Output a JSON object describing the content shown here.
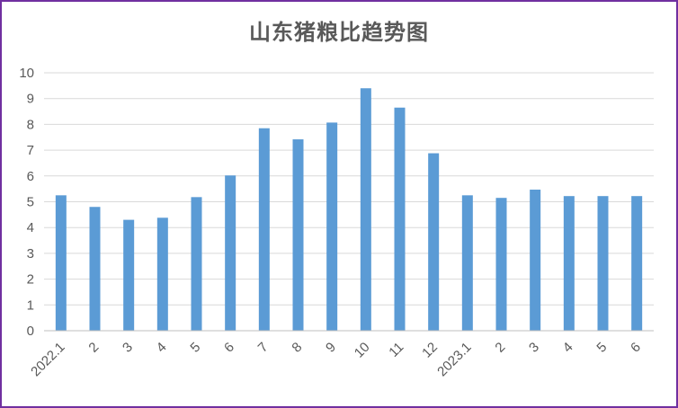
{
  "chart_data": {
    "type": "bar",
    "title": "山东猪粮比趋势图",
    "xlabel": "",
    "ylabel": "",
    "ylim": [
      0,
      10
    ],
    "yticks": [
      0,
      1,
      2,
      3,
      4,
      5,
      6,
      7,
      8,
      9,
      10
    ],
    "grid": true,
    "categories": [
      "2022.1",
      "2",
      "3",
      "4",
      "5",
      "6",
      "7",
      "8",
      "9",
      "10",
      "11",
      "12",
      "2023.1",
      "2",
      "3",
      "4",
      "5",
      "6"
    ],
    "values": [
      5.25,
      4.8,
      4.3,
      4.38,
      5.18,
      6.02,
      7.85,
      7.42,
      8.07,
      9.4,
      8.65,
      6.88,
      5.25,
      5.15,
      5.47,
      5.22,
      5.22,
      5.22
    ],
    "colors": {
      "bar": "#5b9bd5",
      "grid": "#d9d9d9",
      "axis": "#bfbfbf",
      "border": "#7030a0"
    }
  }
}
